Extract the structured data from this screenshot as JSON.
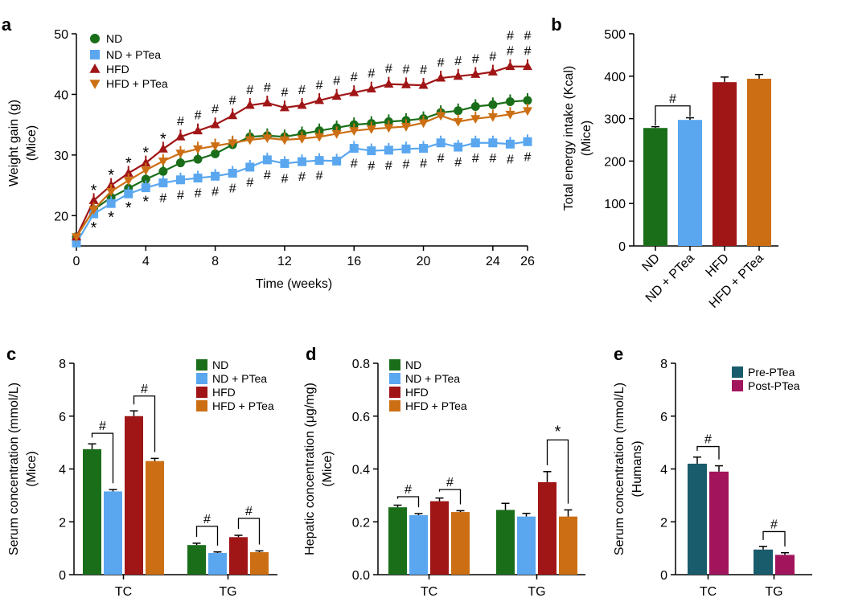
{
  "colors": {
    "ND": "#1a6e1a",
    "ND + PTea": "#5aa7f0",
    "HFD": "#a01516",
    "HFD + PTea": "#cc6f14",
    "Pre-PTea": "#195c6b",
    "Post-PTea": "#a2145c"
  },
  "chart_data": [
    {
      "panel": "a",
      "type": "line",
      "xlabel": "Time (weeks)",
      "ylabel": "Weight gain (g)",
      "ylabel2": "(Mice)",
      "xlim": [
        0,
        26
      ],
      "ylim": [
        15,
        50
      ],
      "xticks": [
        0,
        4,
        8,
        12,
        16,
        20,
        24,
        26
      ],
      "yticks": [
        20,
        30,
        40,
        50
      ],
      "legend_position": "top-left",
      "x": [
        0,
        1,
        2,
        3,
        4,
        5,
        6,
        7,
        8,
        9,
        10,
        11,
        12,
        13,
        14,
        15,
        16,
        17,
        18,
        19,
        20,
        21,
        22,
        23,
        24,
        25,
        26
      ],
      "series": [
        {
          "name": "ND",
          "marker": "circle",
          "values": [
            16.5,
            21,
            23,
            24.5,
            26,
            27.3,
            28.7,
            29.3,
            30.2,
            31.7,
            33,
            33.2,
            33,
            33.5,
            34,
            34.5,
            35,
            35.2,
            35.5,
            35.7,
            36,
            37,
            37.3,
            38,
            38.3,
            38.8,
            39
          ]
        },
        {
          "name": "ND + PTea",
          "marker": "square",
          "values": [
            15.5,
            20.3,
            22,
            23.6,
            24.6,
            25.4,
            25.9,
            26.2,
            26.5,
            27,
            28,
            29.2,
            28.6,
            28.9,
            29.1,
            29,
            31.1,
            30.7,
            30.8,
            31,
            31.1,
            32,
            31.3,
            32,
            32,
            31.8,
            32.2
          ]
        },
        {
          "name": "HFD",
          "marker": "triangle-up",
          "values": [
            16.5,
            22.5,
            25,
            27,
            28.7,
            31,
            33,
            34,
            35,
            36.5,
            38.2,
            38.6,
            37.8,
            38.2,
            39,
            39.7,
            40.3,
            40.9,
            41.7,
            41.6,
            41.5,
            42.7,
            43,
            43.3,
            43.7,
            44.6,
            44.6
          ]
        },
        {
          "name": "HFD + PTea",
          "marker": "triangle-down",
          "values": [
            16.5,
            21,
            24,
            25.8,
            27.5,
            29,
            30.3,
            31,
            31.5,
            32,
            32.5,
            32.8,
            32.5,
            32.7,
            33,
            33.5,
            34,
            34.3,
            34.5,
            34.7,
            35.3,
            36.5,
            35.5,
            36,
            36.3,
            36.7,
            37.3
          ]
        }
      ],
      "annotations": {
        "star_upper_weeks": [
          1,
          2,
          3,
          4,
          5
        ],
        "star_lower_weeks": [
          1,
          2,
          3,
          4
        ],
        "hash_upper_weeks": [
          6,
          7,
          8,
          9,
          10,
          11,
          12,
          13,
          14,
          15,
          16,
          17,
          18,
          19,
          20,
          21,
          22,
          23,
          24,
          25,
          26
        ],
        "hash_lower_weeks": [
          5,
          6,
          7,
          8,
          9,
          10,
          11,
          12,
          13,
          14,
          16,
          17,
          18,
          19,
          20,
          21,
          22,
          23,
          24,
          25,
          26
        ],
        "hash_top_weeks": [
          25,
          26
        ],
        "star_symbol": "*",
        "hash_symbol": "#"
      }
    },
    {
      "panel": "b",
      "type": "bar",
      "ylabel": "Total energy intake (Kcal)",
      "ylabel2": "(Mice)",
      "ylim": [
        0,
        500
      ],
      "yticks": [
        0,
        100,
        200,
        300,
        400,
        500
      ],
      "categories": [
        "ND",
        "ND + PTea",
        "HFD",
        "HFD + PTea"
      ],
      "values": [
        278,
        297,
        386,
        394
      ],
      "errors": [
        3,
        5,
        12,
        10
      ],
      "bracket": {
        "from": 0,
        "to": 1,
        "label": "#"
      }
    },
    {
      "panel": "c",
      "type": "bar",
      "ylabel": "Serum concentration (mmol/L)",
      "ylabel2": "(Mice)",
      "ylim": [
        0,
        8
      ],
      "yticks": [
        0,
        2,
        4,
        6,
        8
      ],
      "categories": [
        "TC",
        "TG"
      ],
      "legend_position": "top-right",
      "series": [
        {
          "name": "ND",
          "values": [
            4.75,
            1.12
          ],
          "errors": [
            0.2,
            0.07
          ]
        },
        {
          "name": "ND + PTea",
          "values": [
            3.15,
            0.82
          ],
          "errors": [
            0.07,
            0.04
          ]
        },
        {
          "name": "HFD",
          "values": [
            6.0,
            1.42
          ],
          "errors": [
            0.2,
            0.07
          ]
        },
        {
          "name": "HFD + PTea",
          "values": [
            4.3,
            0.85
          ],
          "errors": [
            0.1,
            0.05
          ]
        }
      ],
      "brackets": [
        {
          "group": 0,
          "from": 0,
          "to": 1,
          "label": "#"
        },
        {
          "group": 0,
          "from": 2,
          "to": 3,
          "label": "#"
        },
        {
          "group": 1,
          "from": 0,
          "to": 1,
          "label": "#"
        },
        {
          "group": 1,
          "from": 2,
          "to": 3,
          "label": "#"
        }
      ]
    },
    {
      "panel": "d",
      "type": "bar",
      "ylabel": "Hepatic concentration (μg/mg)",
      "ylabel2": "(Mice)",
      "ylim": [
        0,
        0.8
      ],
      "yticks": [
        "0.0",
        "0.2",
        "0.4",
        "0.6",
        "0.8"
      ],
      "categories": [
        "TC",
        "TG"
      ],
      "legend_position": "top-left",
      "series": [
        {
          "name": "ND",
          "values": [
            0.255,
            0.245
          ],
          "errors": [
            0.008,
            0.025
          ]
        },
        {
          "name": "ND + PTea",
          "values": [
            0.225,
            0.22
          ],
          "errors": [
            0.006,
            0.012
          ]
        },
        {
          "name": "HFD",
          "values": [
            0.278,
            0.35
          ],
          "errors": [
            0.012,
            0.04
          ]
        },
        {
          "name": "HFD + PTea",
          "values": [
            0.237,
            0.22
          ],
          "errors": [
            0.005,
            0.025
          ]
        }
      ],
      "brackets": [
        {
          "group": 0,
          "from": 0,
          "to": 1,
          "label": "#"
        },
        {
          "group": 0,
          "from": 2,
          "to": 3,
          "label": "#"
        },
        {
          "group": 1,
          "from": 2,
          "to": 3,
          "label": "*"
        }
      ]
    },
    {
      "panel": "e",
      "type": "bar",
      "ylabel": "Serum concentration (mmol/L)",
      "ylabel2": "(Humans)",
      "ylim": [
        0,
        8
      ],
      "yticks": [
        0,
        2,
        4,
        6,
        8
      ],
      "categories": [
        "TC",
        "TG"
      ],
      "legend_position": "top-right",
      "series": [
        {
          "name": "Pre-PTea",
          "values": [
            4.2,
            0.95
          ],
          "errors": [
            0.25,
            0.12
          ]
        },
        {
          "name": "Post-PTea",
          "values": [
            3.9,
            0.75
          ],
          "errors": [
            0.22,
            0.08
          ]
        }
      ],
      "brackets": [
        {
          "group": 0,
          "from": 0,
          "to": 1,
          "label": "#"
        },
        {
          "group": 1,
          "from": 0,
          "to": 1,
          "label": "#"
        }
      ]
    }
  ]
}
